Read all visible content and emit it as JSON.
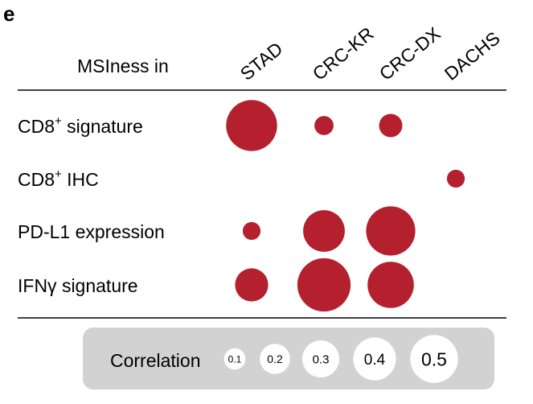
{
  "panel_label": "e",
  "chart_data": {
    "type": "bubble-matrix",
    "column_header": "MSIness in",
    "columns": [
      "STAD",
      "CRC-KR",
      "CRC-DX",
      "DACHS"
    ],
    "rows": [
      {
        "label": "CD8",
        "superscript": "+",
        "suffix": " signature"
      },
      {
        "label": "CD8",
        "superscript": "+",
        "suffix": " IHC"
      },
      {
        "label": "PD-L1 expression",
        "superscript": "",
        "suffix": ""
      },
      {
        "label": "IFNγ signature",
        "superscript": "",
        "suffix": ""
      }
    ],
    "values": [
      [
        0.57,
        0.08,
        0.12,
        null
      ],
      [
        null,
        null,
        null,
        0.07
      ],
      [
        0.07,
        0.38,
        0.53,
        null
      ],
      [
        0.24,
        0.62,
        0.47,
        null
      ]
    ],
    "legend": {
      "title": "Correlation",
      "entries": [
        {
          "value": 0.1,
          "label": "0.1"
        },
        {
          "value": 0.2,
          "label": "0.2"
        },
        {
          "value": 0.3,
          "label": "0.3"
        },
        {
          "value": 0.4,
          "label": "0.4"
        },
        {
          "value": 0.5,
          "label": "0.5"
        }
      ]
    },
    "colors": {
      "bubble": "#b5202e",
      "legend_box": "#d3d2d2",
      "legend_bubble": "#ffffff",
      "rule": "#000000"
    }
  }
}
